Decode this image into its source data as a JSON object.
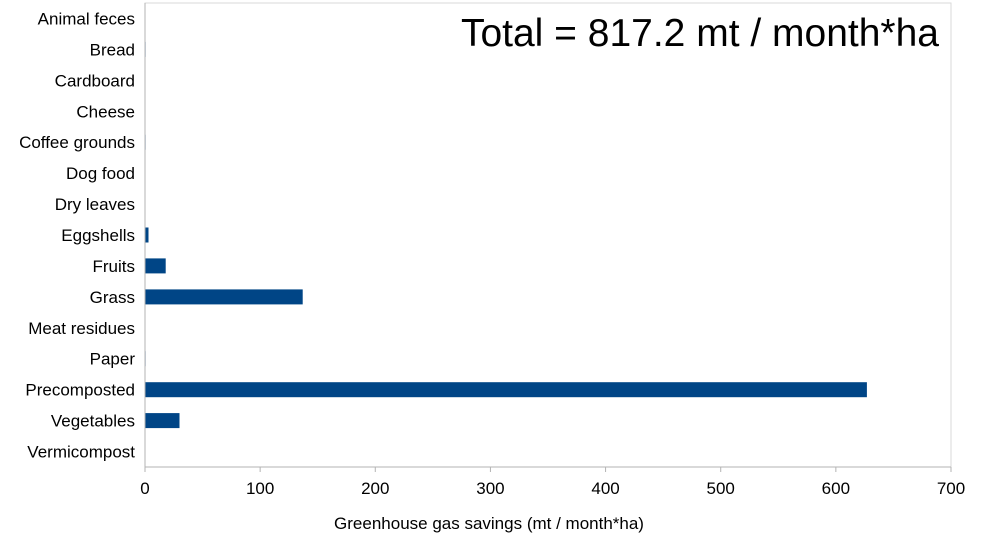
{
  "chart_data": {
    "type": "bar",
    "orientation": "horizontal",
    "categories": [
      "Animal feces",
      "Bread",
      "Cardboard",
      "Cheese",
      "Coffee grounds",
      "Dog food",
      "Dry leaves",
      "Eggshells",
      "Fruits",
      "Grass",
      "Meat residues",
      "Paper",
      "Precomposted",
      "Vegetables",
      "Vermicompost"
    ],
    "values": [
      0,
      0.5,
      0,
      0,
      0.5,
      0,
      0,
      3,
      18,
      137,
      0,
      0.5,
      627,
      30,
      0
    ],
    "xlabel": "Greenhouse gas savings (mt / month*ha)",
    "ylabel": "",
    "xlim": [
      0,
      700
    ],
    "xticks": [
      0,
      100,
      200,
      300,
      400,
      500,
      600,
      700
    ],
    "annotation": "Total = 817.2 mt / month*ha",
    "annotation_placement": "top-right",
    "grid": false,
    "bar_color": "#004586"
  }
}
